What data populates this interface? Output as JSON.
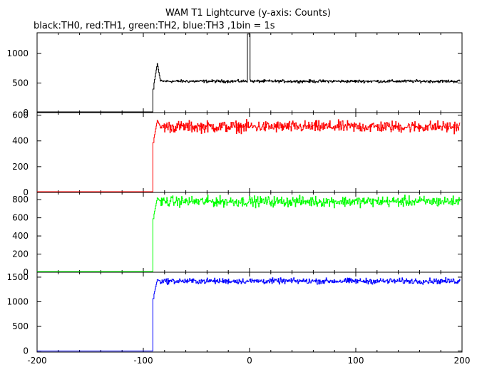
{
  "title": "WAM T1 Lightcurve (y-axis: Counts)",
  "subtitle": "black:TH0, red:TH1, green:TH2, blue:TH3 ,1bin = 1s",
  "chart_data": [
    {
      "type": "line",
      "series_name": "TH0",
      "color": "#000000",
      "xlim": [
        -200,
        200
      ],
      "ylim": [
        0,
        1350
      ],
      "y_ticks": [
        0,
        500,
        1000
      ],
      "baseline": 0,
      "onset_x": -91,
      "peak": {
        "x": -89,
        "y": 830
      },
      "plateau": 530,
      "noise": 12,
      "spike": {
        "x": -1,
        "y": 1330,
        "width": 2
      },
      "x_start": -200,
      "x_end": 198
    },
    {
      "type": "line",
      "series_name": "TH1",
      "color": "#ff0000",
      "xlim": [
        -200,
        200
      ],
      "ylim": [
        0,
        620
      ],
      "y_ticks": [
        0,
        200,
        400,
        600
      ],
      "baseline": 5,
      "onset_x": -91,
      "peak": {
        "x": -89,
        "y": 560
      },
      "plateau": 510,
      "noise": 22,
      "spike": null,
      "x_start": -200,
      "x_end": 198
    },
    {
      "type": "line",
      "series_name": "TH2",
      "color": "#00ff00",
      "xlim": [
        -200,
        200
      ],
      "ylim": [
        0,
        880
      ],
      "y_ticks": [
        0,
        200,
        400,
        600,
        800
      ],
      "baseline": 5,
      "onset_x": -91,
      "peak": {
        "x": -89,
        "y": 820
      },
      "plateau": 780,
      "noise": 28,
      "spike": null,
      "x_start": -200,
      "x_end": 198
    },
    {
      "type": "line",
      "series_name": "TH3",
      "color": "#0000ff",
      "xlim": [
        -200,
        200
      ],
      "ylim": [
        -20,
        1600
      ],
      "y_ticks": [
        0,
        500,
        1000,
        1500
      ],
      "baseline": 0,
      "onset_x": -91,
      "peak": {
        "x": -89,
        "y": 1450
      },
      "plateau": 1420,
      "noise": 28,
      "spike": null,
      "x_start": -200,
      "x_end": 198
    }
  ],
  "x_ticks": [
    -200,
    -100,
    0,
    100,
    200
  ]
}
